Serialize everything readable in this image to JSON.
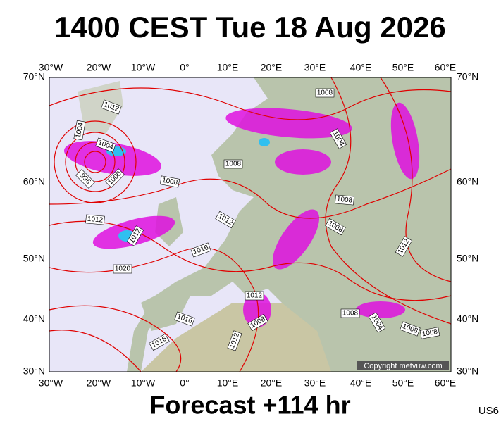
{
  "header": {
    "title": "1400 CEST Tue 18 Aug 2026"
  },
  "map": {
    "top_labels": [
      "30°W",
      "20°W",
      "10°W",
      "0°",
      "10°E",
      "20°E",
      "30°E",
      "40°E",
      "50°E",
      "60°E"
    ],
    "bottom_labels": [
      "30°W",
      "20°W",
      "10°W",
      "0°",
      "10°E",
      "20°E",
      "30°E",
      "40°E",
      "50°E",
      "60°E"
    ],
    "left_labels": [
      "70°N",
      "60°N",
      "50°N",
      "40°N",
      "30°N"
    ],
    "right_labels": [
      "70°N",
      "60°N",
      "50°N",
      "40°N",
      "30°N"
    ],
    "isobar_labels": [
      "1008",
      "1012",
      "1004",
      "1004",
      "996",
      "1000",
      "1008",
      "1008",
      "1004",
      "1008",
      "1008",
      "1012",
      "1012",
      "1012",
      "1016",
      "1020",
      "1012",
      "1012",
      "1016",
      "1008",
      "1016",
      "1012",
      "1008",
      "1004",
      "1008",
      "1008"
    ],
    "copyright": "Copyright metvuw.com"
  },
  "footer": {
    "forecast": "Forecast +114 hr",
    "code": "US6"
  }
}
